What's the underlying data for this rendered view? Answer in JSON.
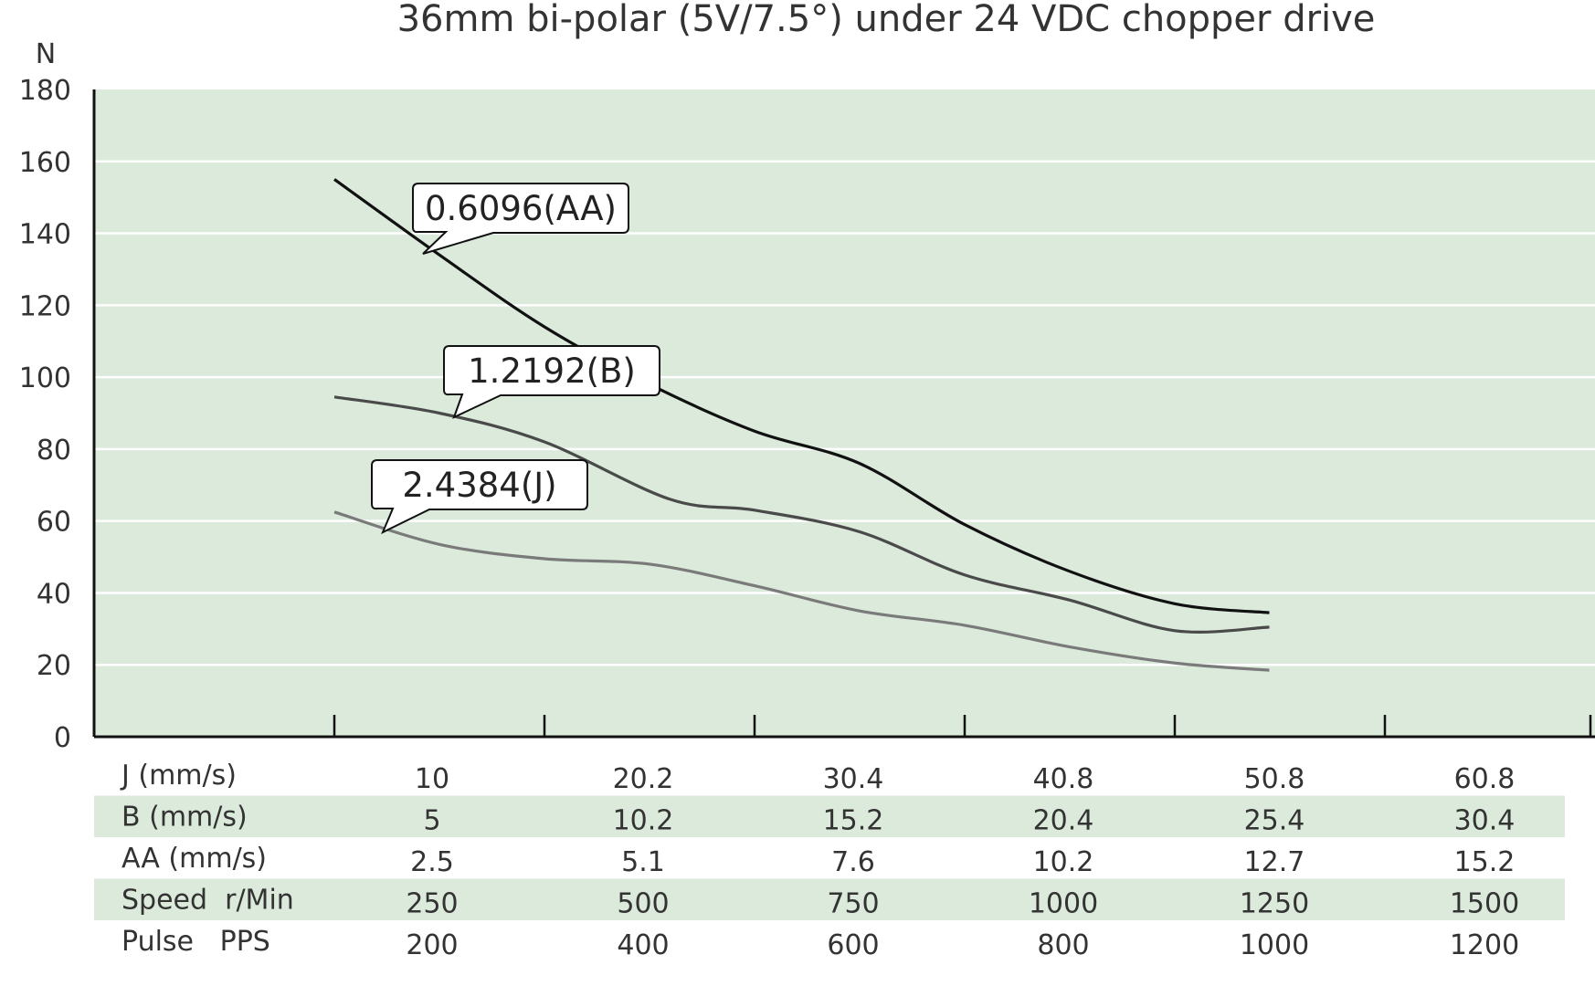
{
  "chart_data": {
    "type": "line",
    "title": "36mm bi-polar (5V/7.5°) under 24 VDC chopper drive",
    "ylabel": "N",
    "ylim": [
      0,
      180
    ],
    "yticks": [
      0,
      20,
      40,
      60,
      80,
      100,
      120,
      140,
      160,
      180
    ],
    "grid": true,
    "x_positions": [
      1,
      2,
      3,
      4,
      5,
      6
    ],
    "series": [
      {
        "name": "0.6096(AA)",
        "color": "#111111",
        "points": [
          [
            1,
            155
          ],
          [
            1.5,
            134
          ],
          [
            2,
            114
          ],
          [
            2.5,
            98
          ],
          [
            3,
            85
          ],
          [
            3.5,
            76
          ],
          [
            4,
            59
          ],
          [
            4.5,
            46
          ],
          [
            5,
            37
          ],
          [
            5.45,
            34.5
          ]
        ]
      },
      {
        "name": "1.2192(B)",
        "color": "#4a4a4a",
        "points": [
          [
            1,
            94.5
          ],
          [
            1.5,
            90
          ],
          [
            2,
            82
          ],
          [
            2.6,
            66
          ],
          [
            3,
            63
          ],
          [
            3.5,
            57
          ],
          [
            4,
            45
          ],
          [
            4.5,
            38
          ],
          [
            5,
            29.5
          ],
          [
            5.45,
            30.5
          ]
        ]
      },
      {
        "name": "2.4384(J)",
        "color": "#7a7a7a",
        "points": [
          [
            1,
            62.5
          ],
          [
            1.5,
            53.5
          ],
          [
            2,
            49.5
          ],
          [
            2.5,
            48
          ],
          [
            3,
            42
          ],
          [
            3.5,
            35
          ],
          [
            4,
            31
          ],
          [
            4.5,
            25
          ],
          [
            5,
            20.5
          ],
          [
            5.45,
            18.5
          ]
        ]
      }
    ],
    "table": {
      "rows": [
        {
          "label": "J (mm/s)",
          "values": [
            "10",
            "20.2",
            "30.4",
            "40.8",
            "50.8",
            "60.8"
          ],
          "shaded": false
        },
        {
          "label": "B (mm/s)",
          "values": [
            "5",
            "10.2",
            "15.2",
            "20.4",
            "25.4",
            "30.4"
          ],
          "shaded": true
        },
        {
          "label": "AA (mm/s)",
          "values": [
            "2.5",
            "5.1",
            "7.6",
            "10.2",
            "12.7",
            "15.2"
          ],
          "shaded": false
        },
        {
          "label": "Speed  r/Min",
          "values": [
            "250",
            "500",
            "750",
            "1000",
            "1250",
            "1500"
          ],
          "shaded": true
        },
        {
          "label": "Pulse   PPS",
          "values": [
            "200",
            "400",
            "600",
            "800",
            "1000",
            "1200"
          ],
          "shaded": false
        }
      ]
    },
    "colors": {
      "plot_background": "#dbeadb",
      "gridline": "#ffffff",
      "axis": "#111111",
      "row_shade": "#dbeadb"
    }
  }
}
